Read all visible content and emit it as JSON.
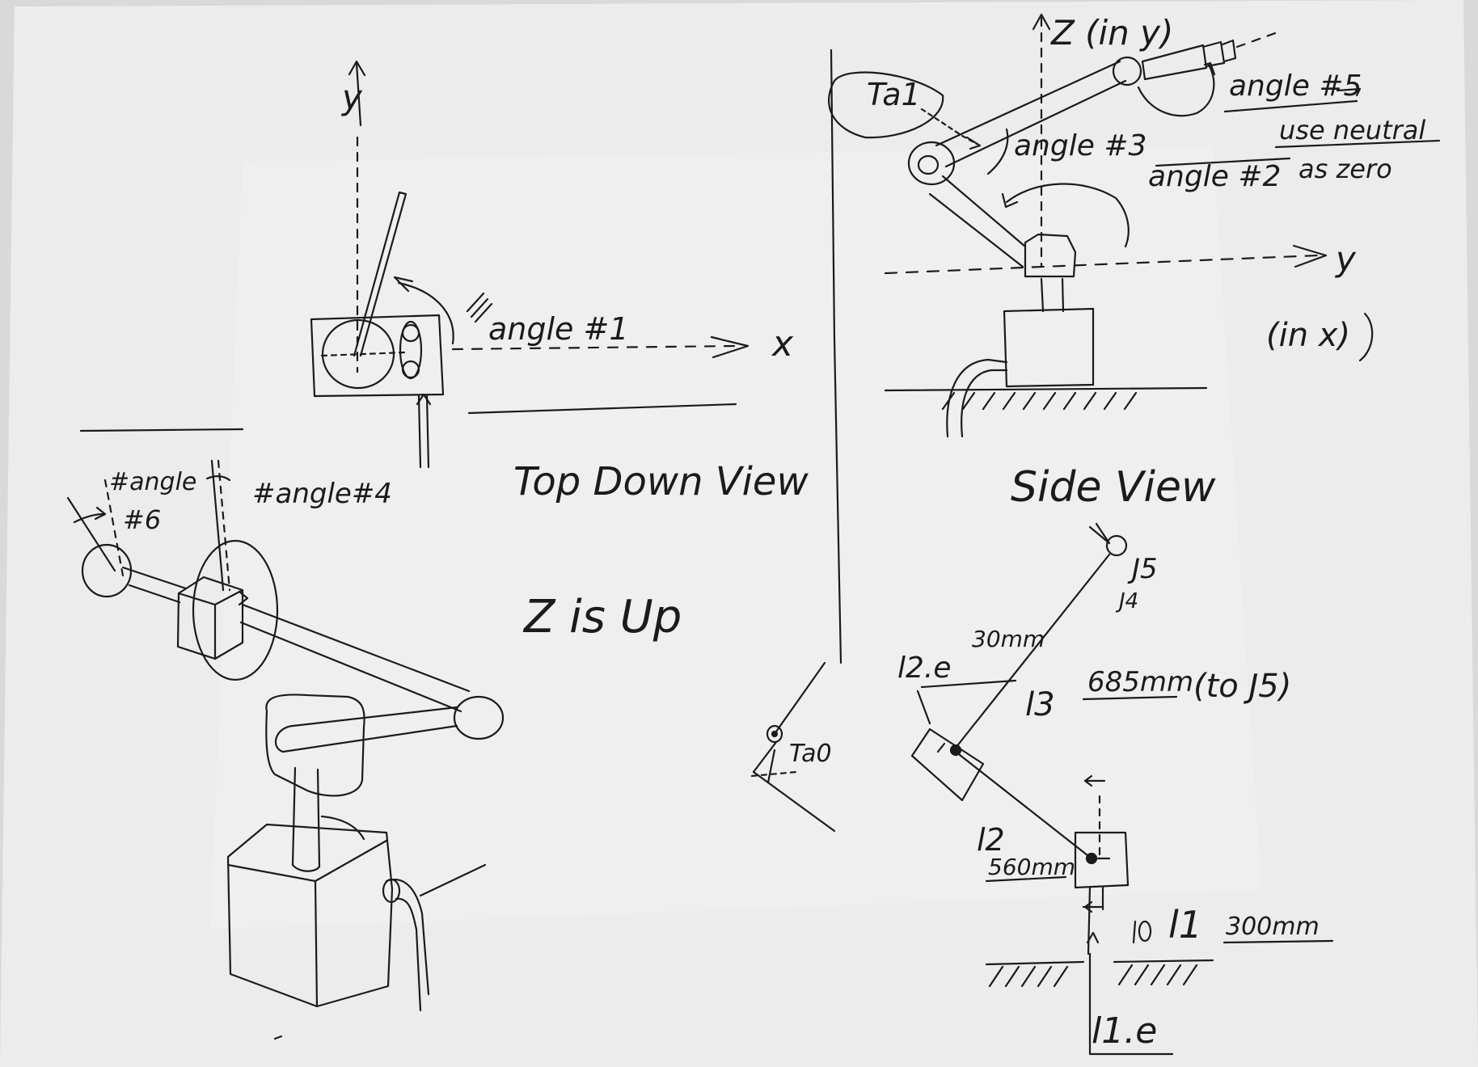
{
  "top_down": {
    "axis_y": "y",
    "axis_x": "x",
    "angle1": "angle #1",
    "title": "Top Down View"
  },
  "side": {
    "axis_z": "Z (in y)",
    "axis_y": "y",
    "axis_y_note": "(in x)",
    "ta1": "Ta1",
    "angle3": "angle #3",
    "angle2": "angle #2",
    "angle5": "angle #5",
    "neutral_note_1": "use neutral",
    "neutral_note_2": "as zero",
    "title": "Side View"
  },
  "iso": {
    "angle6_a": "#angle",
    "angle6_b": "#6",
    "angle4": "#angle#4",
    "z_up": "Z is Up"
  },
  "ta0": "Ta0",
  "dims": {
    "j5": "J5",
    "j4": "J4",
    "l2e": "l2.e",
    "l2e_val": "30mm",
    "l3": "l3",
    "l3_val": "685mm",
    "l3_note": "(to J5)",
    "l2": "l2",
    "l2_val": "560mm",
    "l1": "l1",
    "l1_val": "300mm",
    "l1e": "l1.e"
  }
}
